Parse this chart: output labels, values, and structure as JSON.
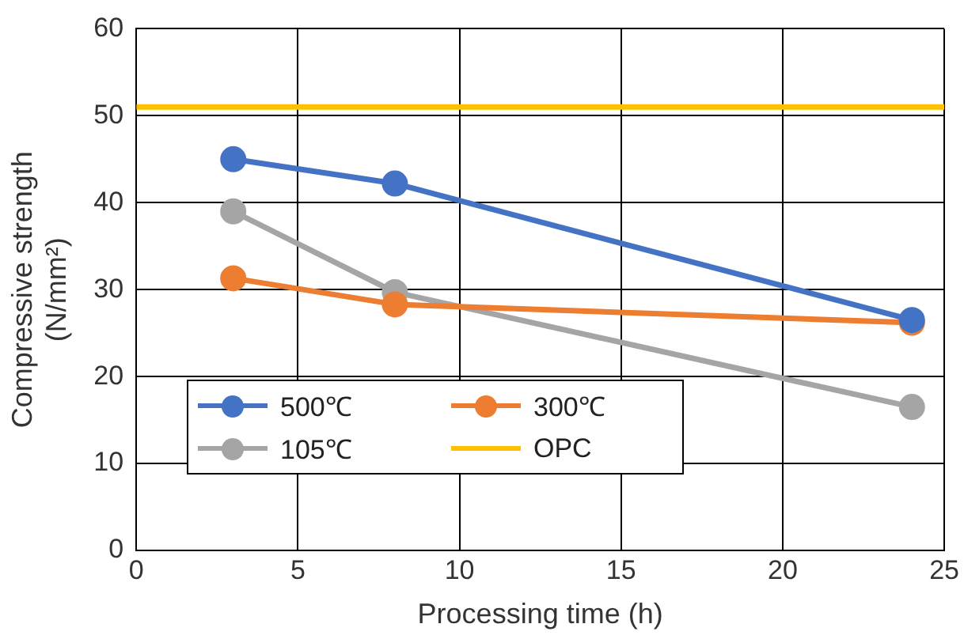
{
  "chart_data": {
    "type": "line",
    "xlabel": "Processing time (h)",
    "ylabel": "Compressive strength (N/mm²)",
    "xlim": [
      0,
      25
    ],
    "xticks": [
      0,
      5,
      10,
      15,
      20,
      25
    ],
    "ylim": [
      0,
      60
    ],
    "yticks": [
      0,
      10,
      20,
      30,
      40,
      50,
      60
    ],
    "grid": true,
    "legend": "bottom left",
    "marker": "circle",
    "line_style": "solid",
    "series": [
      {
        "name": "500℃",
        "color": "#4472c4",
        "x": [
          3,
          8,
          24
        ],
        "values": [
          45,
          42.2,
          26.5
        ]
      },
      {
        "name": "300℃",
        "color": "#ed7d31",
        "x": [
          3,
          8,
          24
        ],
        "values": [
          31.3,
          28.3,
          26.2
        ]
      },
      {
        "name": "105℃",
        "color": "#a5a5a5",
        "x": [
          3,
          8,
          24
        ],
        "values": [
          39,
          29.7,
          16.5
        ]
      },
      {
        "name": "OPC",
        "color": "#ffc000",
        "x": [
          0,
          25
        ],
        "values": [
          51,
          51
        ],
        "marker": "none"
      }
    ]
  }
}
